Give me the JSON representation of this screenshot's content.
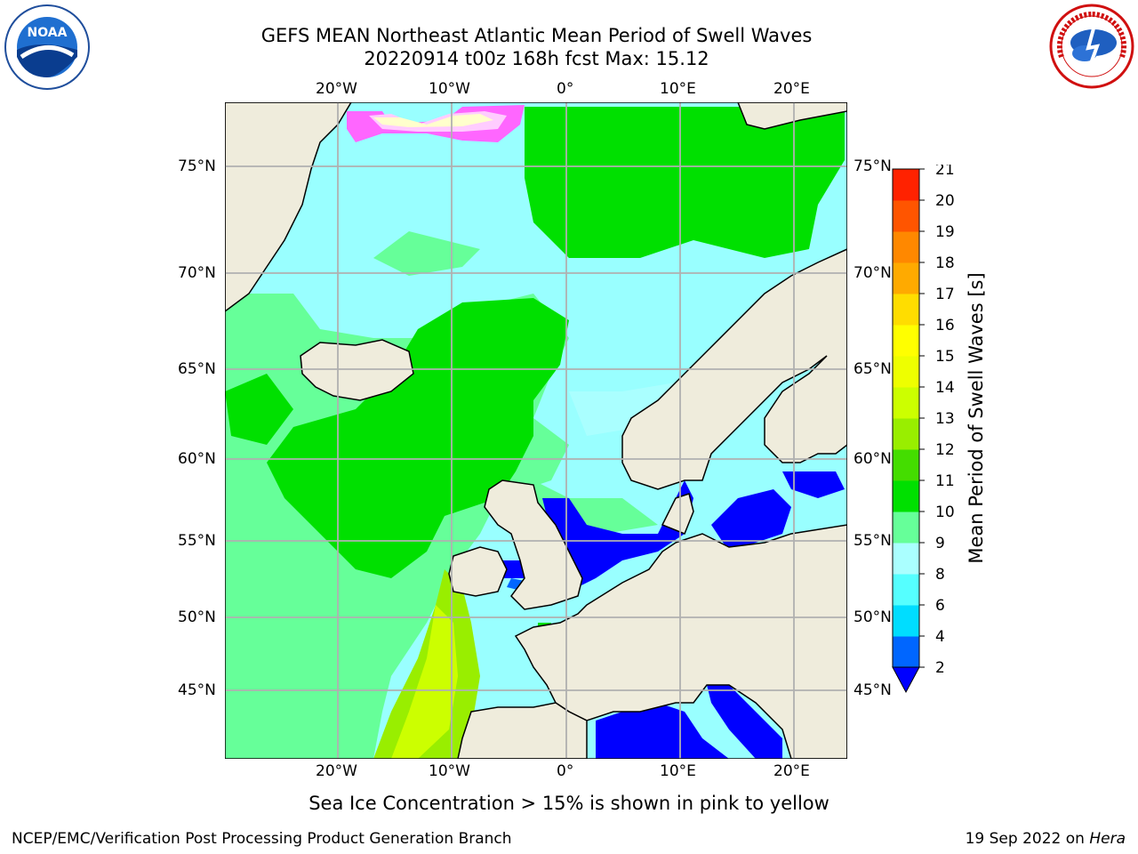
{
  "title": {
    "line1": "GEFS MEAN Northeast Atlantic Mean Period of Swell Waves",
    "line2": "20220914 t00z 168h fcst   Max: 15.12"
  },
  "logos": {
    "left": {
      "name": "noaa-logo",
      "text": "NOAA",
      "ring_text": "NATIONAL OCEANIC AND ATMOSPHERIC ADMINISTRATION · U.S. DEPARTMENT OF COMMERCE"
    },
    "right": {
      "name": "nws-logo",
      "ring_text": "NATIONAL WEATHER SERVICE"
    }
  },
  "map": {
    "lon_labels_top": [
      "20°W",
      "10°W",
      "0°",
      "10°E",
      "20°E"
    ],
    "lon_labels_bottom": [
      "20°W",
      "10°W",
      "0°",
      "10°E",
      "20°E"
    ],
    "lat_labels_left": [
      "75°N",
      "70°N",
      "65°N",
      "60°N",
      "55°N",
      "50°N",
      "45°N"
    ],
    "lat_labels_right": [
      "75°N",
      "70°N",
      "65°N",
      "60°N",
      "55°N",
      "50°N",
      "45°N"
    ],
    "colors": {
      "land": "#efecdc",
      "ocean_default": "#99ffff",
      "grid": "#b0b0b0",
      "coast": "#000000"
    }
  },
  "colorbar": {
    "title": "Mean Period of Swell Waves [s]",
    "tick_labels": [
      "2",
      "4",
      "6",
      "8",
      "9",
      "10",
      "11",
      "12",
      "13",
      "14",
      "15",
      "16",
      "17",
      "18",
      "19",
      "20",
      "21"
    ],
    "colors": [
      "#0066ff",
      "#00ddff",
      "#55ffff",
      "#aaffff",
      "#66ff99",
      "#00e000",
      "#44dd00",
      "#99ee00",
      "#ccff00",
      "#eeff00",
      "#ffff00",
      "#ffdd00",
      "#ffaa00",
      "#ff8800",
      "#ff5500",
      "#ff2200"
    ],
    "extend_color": "#0000ff"
  },
  "note": "Sea Ice Concentration > 15% is shown in pink to yellow",
  "footer": {
    "left": "NCEP/EMC/Verification Post Processing Product Generation Branch",
    "right_prefix": "19 Sep 2022 on ",
    "right_host": "Hera"
  }
}
